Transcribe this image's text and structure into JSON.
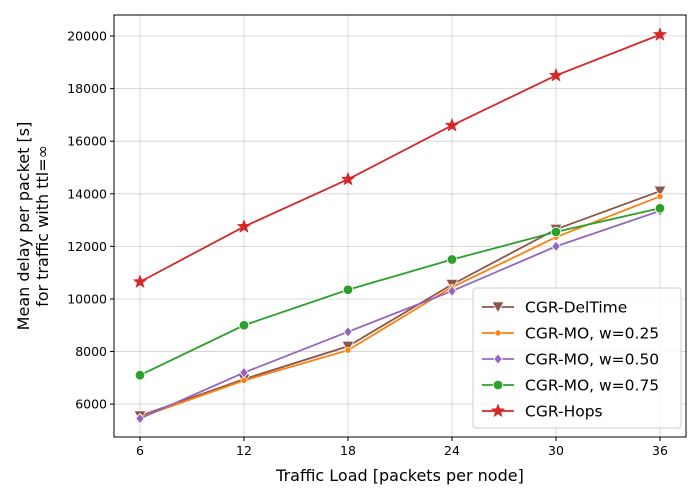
{
  "chart_data": {
    "type": "line",
    "xlabel": "Traffic Load [packets per node]",
    "ylabel_lines": [
      "Mean delay per packet [s]",
      "for traffic with ttl=∞"
    ],
    "x": [
      6,
      12,
      18,
      24,
      30,
      36
    ],
    "xticks": [
      "6",
      "12",
      "18",
      "24",
      "30",
      "36"
    ],
    "yticks": [
      6000,
      8000,
      10000,
      12000,
      14000,
      16000,
      18000,
      20000
    ],
    "yticks_labels": [
      "6000",
      "8000",
      "10000",
      "12000",
      "14000",
      "16000",
      "18000",
      "20000"
    ],
    "xlim": [
      4.5,
      37.5
    ],
    "ylim": [
      4750,
      20800
    ],
    "grid": true,
    "legend_position": "lower-right",
    "series": [
      {
        "name": "CGR-DelTime",
        "color": "#8c564b",
        "marker": "triangle-down",
        "values": [
          5550,
          6950,
          8200,
          10550,
          12650,
          14100
        ]
      },
      {
        "name": "CGR-MO, w=0.25",
        "color": "#ff7f0e",
        "marker": "small-dot",
        "values": [
          5500,
          6900,
          8050,
          10450,
          12350,
          13900
        ]
      },
      {
        "name": "CGR-MO, w=0.50",
        "color": "#9467bd",
        "marker": "diamond",
        "values": [
          5450,
          7200,
          8750,
          10300,
          12000,
          13350
        ]
      },
      {
        "name": "CGR-MO, w=0.75",
        "color": "#2ca02c",
        "marker": "circle",
        "values": [
          7100,
          9000,
          10350,
          11500,
          12550,
          13450
        ]
      },
      {
        "name": "CGR-Hops",
        "color": "#d62728",
        "marker": "star",
        "values": [
          10650,
          12750,
          14550,
          16600,
          18500,
          20050
        ]
      }
    ]
  }
}
